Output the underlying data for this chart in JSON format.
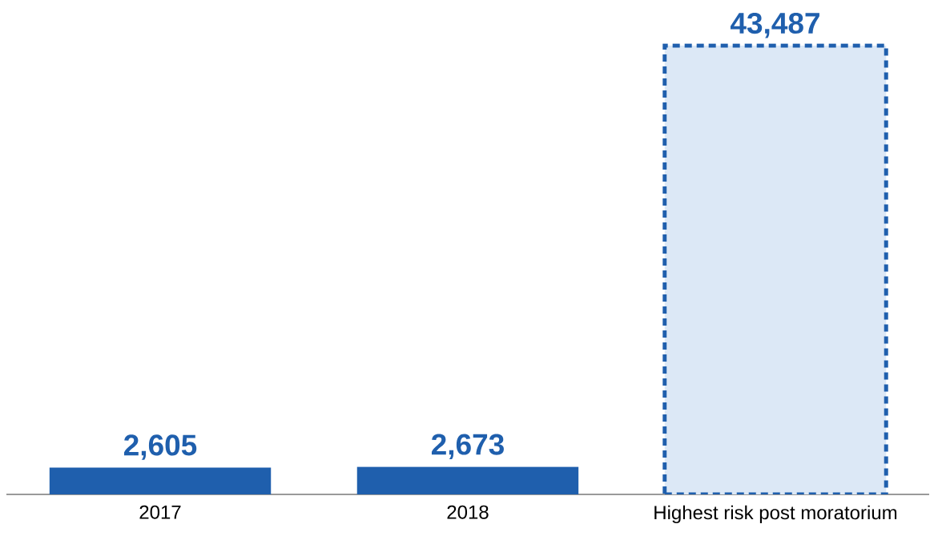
{
  "chart_data": {
    "type": "bar",
    "categories": [
      "2017",
      "2018",
      "Highest risk post moratorium"
    ],
    "series": [
      {
        "color": "#1f5fad",
        "values": [
          2605,
          2673,
          null
        ],
        "value_labels": [
          "2,605",
          "2,673",
          null
        ]
      },
      {
        "color": "#dce8f6",
        "line_style": "dashed",
        "values": [
          null,
          null,
          43487
        ],
        "value_labels": [
          null,
          null,
          "43,487"
        ]
      }
    ]
  }
}
